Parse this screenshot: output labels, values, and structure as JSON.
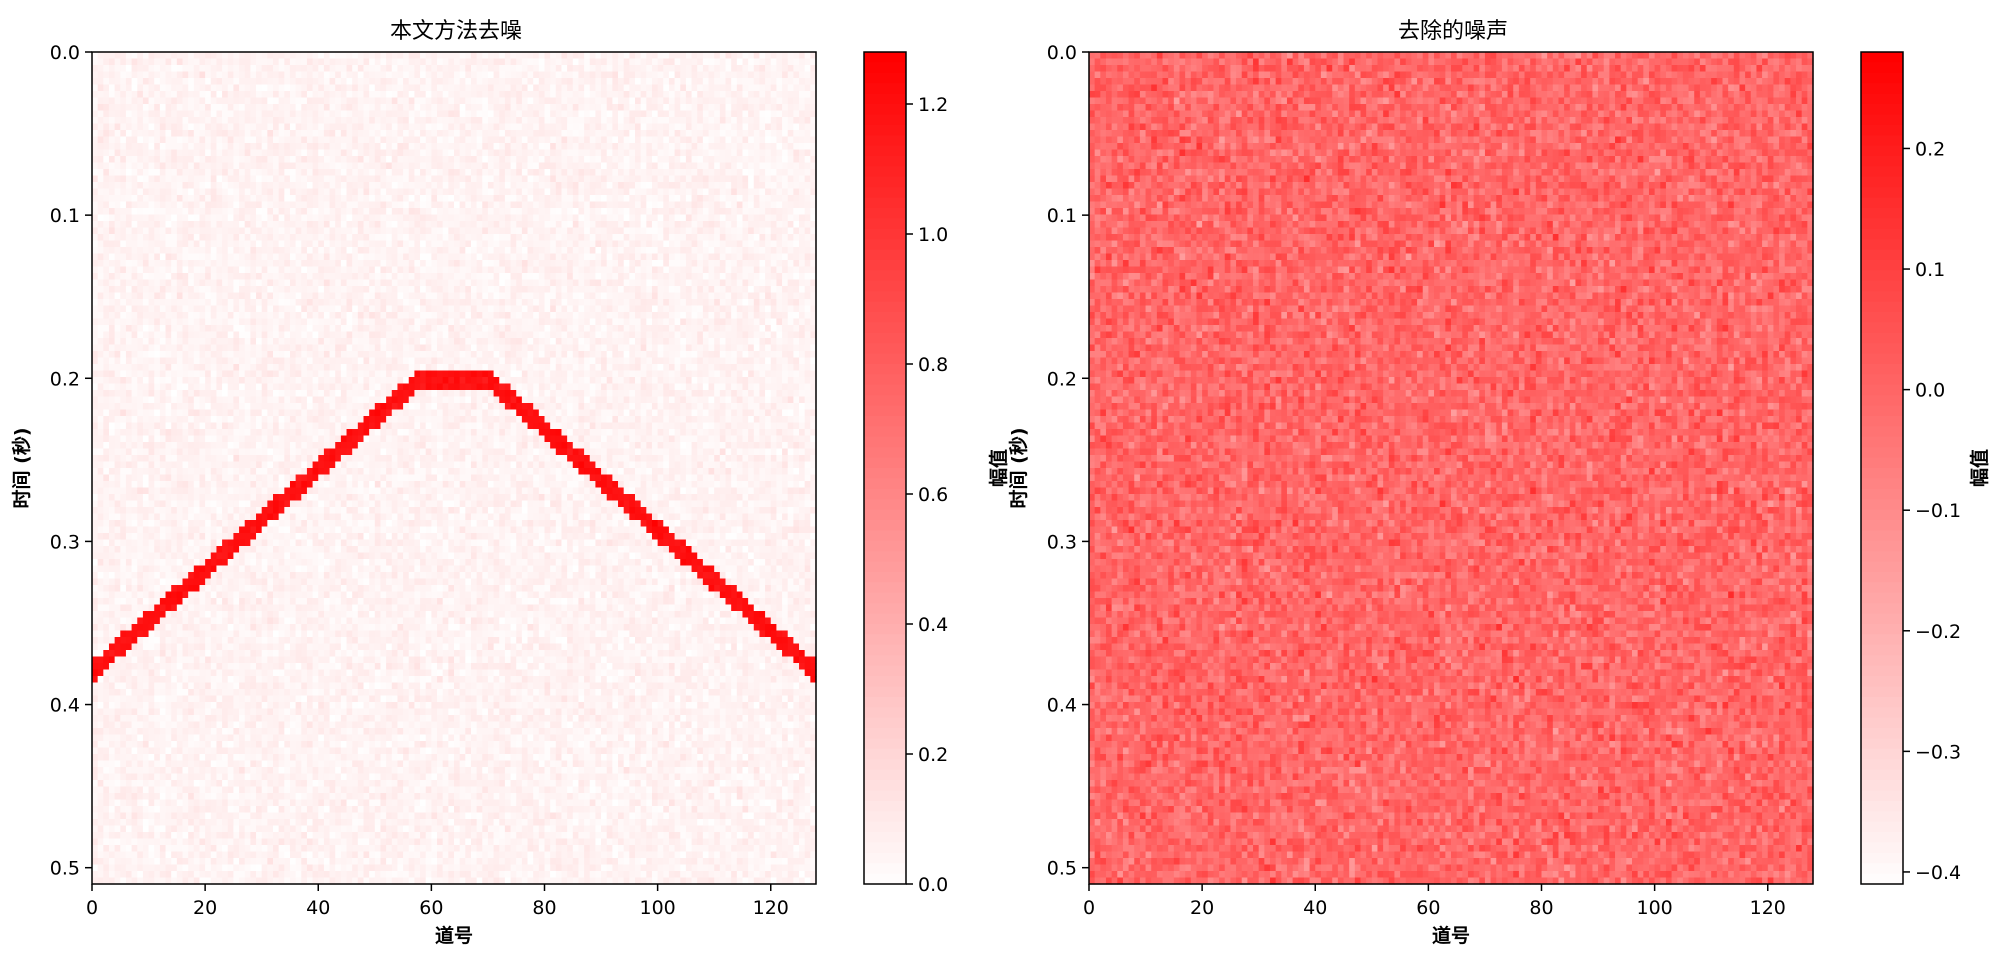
{
  "chart_data": [
    {
      "type": "heatmap",
      "title": "本文方法去噪",
      "xlabel": "道号",
      "ylabel": "时间 (秒)",
      "colorbar_label": "幅值",
      "colormap": [
        "#ffffff",
        "#ff0000"
      ],
      "xlim": [
        0,
        128
      ],
      "ylim": [
        0.51,
        0.0
      ],
      "xticks": [
        0,
        20,
        40,
        60,
        80,
        100,
        120
      ],
      "yticks": [
        0.0,
        0.1,
        0.2,
        0.3,
        0.4,
        0.5
      ],
      "clim": [
        0.0,
        1.28
      ],
      "cbar_ticks": [
        0.0,
        0.2,
        0.4,
        0.6,
        0.8,
        1.0,
        1.2
      ],
      "n_traces": 128,
      "n_samples": 128,
      "background_level": 0.06,
      "background_noise": 0.06,
      "event": {
        "shape": "hyperbola-like arrival",
        "apex_trace": 64,
        "apex_time": 0.2,
        "apex_flat_half_width": 6,
        "edge_time": 0.38,
        "amplitude": 1.2
      }
    },
    {
      "type": "heatmap",
      "title": "去除的噪声",
      "xlabel": "道号",
      "ylabel": "时间 (秒)",
      "colorbar_label": "幅值",
      "colormap": [
        "#ffffff",
        "#ff0000"
      ],
      "xlim": [
        0,
        128
      ],
      "ylim": [
        0.51,
        0.0
      ],
      "xticks": [
        0,
        20,
        40,
        60,
        80,
        100,
        120
      ],
      "yticks": [
        0.0,
        0.1,
        0.2,
        0.3,
        0.4,
        0.5
      ],
      "clim": [
        -0.41,
        0.28
      ],
      "cbar_ticks": [
        0.2,
        0.1,
        0.0,
        -0.1,
        -0.2,
        -0.3,
        -0.4
      ],
      "n_traces": 128,
      "n_samples": 128,
      "background_level": 0.0,
      "background_noise": 0.1,
      "event": null
    }
  ]
}
